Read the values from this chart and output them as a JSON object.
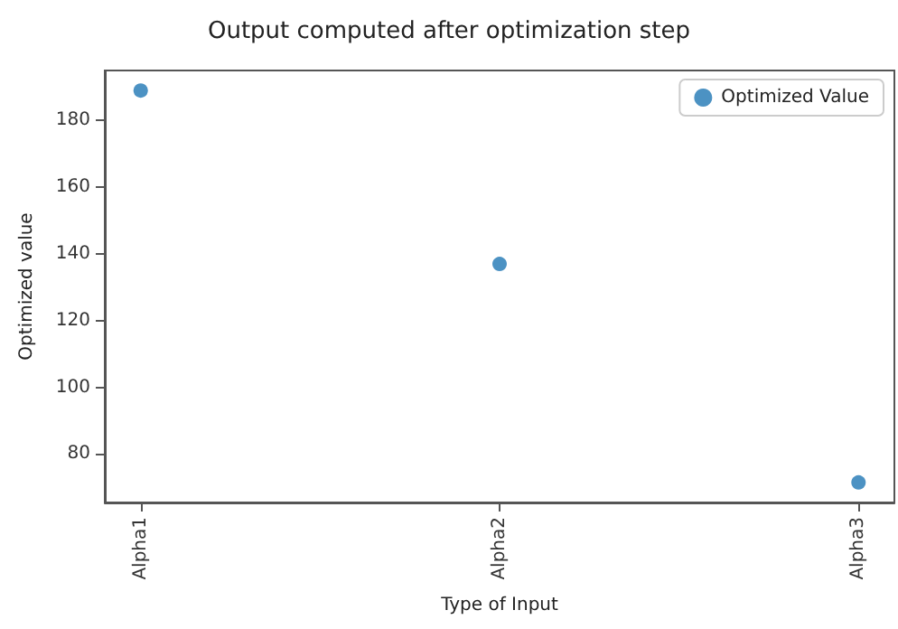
{
  "chart_data": {
    "type": "scatter",
    "title": "Output computed after optimization step",
    "xlabel": "Type of Input",
    "ylabel": "Optimized value",
    "categories": [
      "Alpha1",
      "Alpha2",
      "Alpha3"
    ],
    "series": [
      {
        "name": "Optimized Value",
        "color": "#1f77b4",
        "values": [
          189,
          137,
          71.5
        ]
      }
    ],
    "ylim": [
      65.5,
      195
    ],
    "yticks": [
      80,
      100,
      120,
      140,
      160,
      180
    ],
    "grid": false,
    "legend": "top right",
    "marker": "circle"
  }
}
